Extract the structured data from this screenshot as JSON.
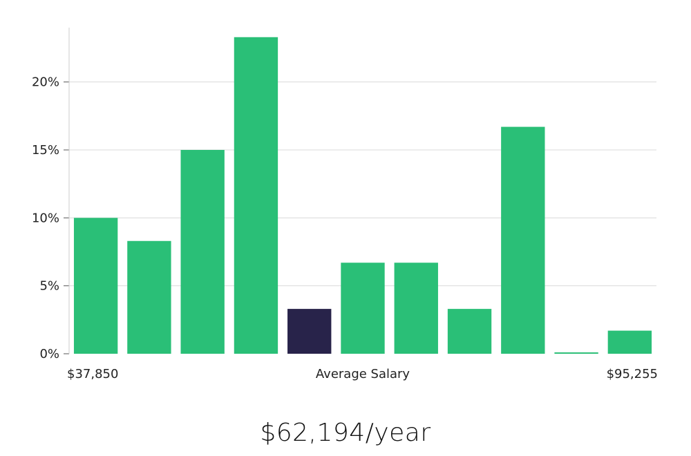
{
  "chart_data": {
    "type": "bar",
    "values": [
      10,
      8.3,
      15,
      23.3,
      3.3,
      6.7,
      6.7,
      3.3,
      16.7,
      0.1,
      1.7
    ],
    "highlight_index": 4,
    "ylim": [
      0,
      24
    ],
    "yticks": [
      0,
      5,
      10,
      15,
      20
    ],
    "ytick_suffix": "%",
    "x_labels": {
      "min": "$37,850",
      "center": "Average Salary",
      "max": "$95,255"
    },
    "grid": true,
    "colors": {
      "bar": "#2abf77",
      "highlight": "#28234a",
      "grid": "#d9d9d9",
      "axis": "#cccccc"
    }
  },
  "average_salary": "$62,194/year"
}
